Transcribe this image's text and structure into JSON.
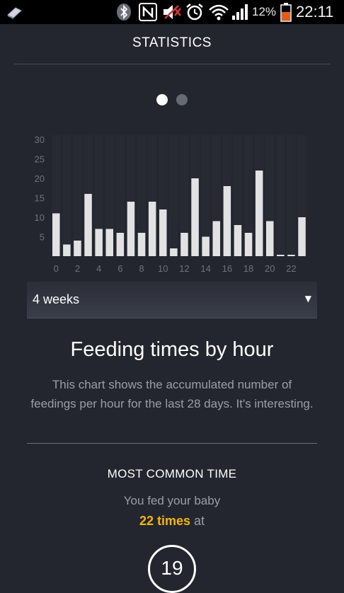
{
  "status_bar": {
    "battery_percent": "12%",
    "time": "22:11",
    "icons": [
      "bluetooth-icon",
      "nfc-icon",
      "mute-icon",
      "alarm-icon",
      "wifi-icon",
      "signal-icon",
      "battery-icon"
    ],
    "battery_color": "#e85a1a"
  },
  "header": {
    "title": "STATISTICS"
  },
  "pager": {
    "total": 2,
    "active": 0
  },
  "chart_data": {
    "type": "bar",
    "x": [
      0,
      1,
      2,
      3,
      4,
      5,
      6,
      7,
      8,
      9,
      10,
      11,
      12,
      13,
      14,
      15,
      16,
      17,
      18,
      19,
      20,
      21,
      22,
      23
    ],
    "values": [
      11,
      3,
      4,
      16,
      7,
      7,
      6,
      14,
      6,
      14,
      12,
      2,
      6,
      20,
      5,
      9,
      18,
      8,
      6,
      22,
      9,
      0,
      0,
      10
    ],
    "x_tick_labels": [
      "0",
      "2",
      "4",
      "6",
      "8",
      "10",
      "12",
      "14",
      "16",
      "18",
      "20",
      "22"
    ],
    "y_tick_labels": [
      "5",
      "10",
      "15",
      "20",
      "25",
      "30"
    ],
    "ylim": [
      0,
      30
    ],
    "bar_color": "#e2e2e2"
  },
  "range_select": {
    "selected": "4 weeks"
  },
  "chart_title": "Feeding times by hour",
  "chart_description": "This chart shows the accumulated number of feedings per hour for the last 28 days. It's interesting.",
  "most_common": {
    "heading": "MOST COMMON TIME",
    "subtext": "You fed your baby",
    "count": "22 times",
    "at": "at",
    "hour": "19",
    "accent_color": "#f5b800"
  }
}
